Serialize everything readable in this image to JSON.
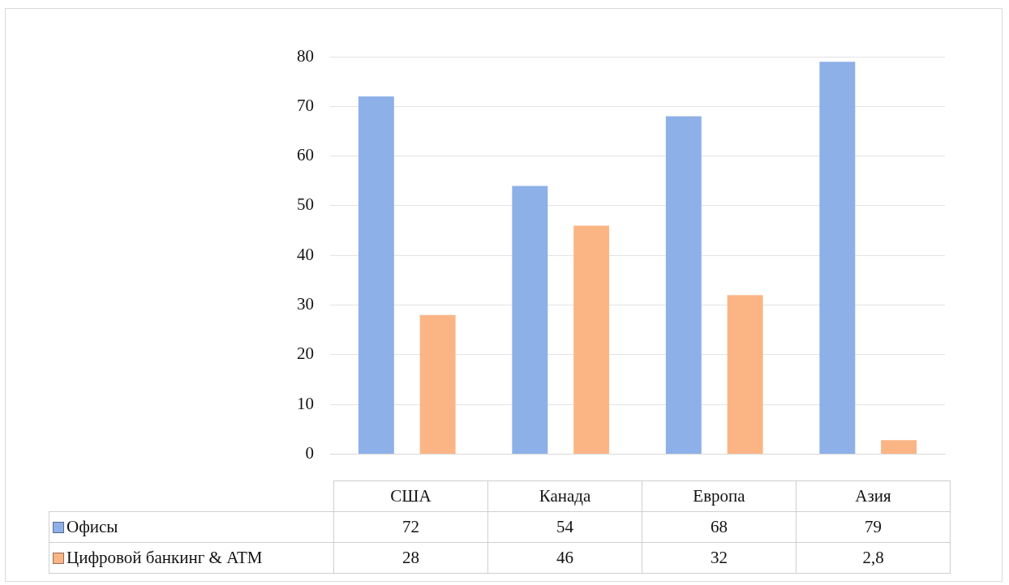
{
  "chart_data": {
    "type": "bar",
    "categories": [
      "США",
      "Канада",
      "Европа",
      "Азия"
    ],
    "series": [
      {
        "name": "Офисы",
        "color": "#8eb0e8",
        "values": [
          72,
          54,
          68,
          79
        ],
        "value_labels": [
          "72",
          "54",
          "68",
          "79"
        ]
      },
      {
        "name": "Цифровой банкинг & ATM",
        "color": "#fbb585",
        "values": [
          28,
          46,
          32,
          2.8
        ],
        "value_labels": [
          "28",
          "46",
          "32",
          "2,8"
        ]
      }
    ],
    "ylim": [
      0,
      80
    ],
    "yticks": [
      0,
      10,
      20,
      30,
      40,
      50,
      60,
      70,
      80
    ],
    "grid": "y",
    "legend": "bottom"
  }
}
